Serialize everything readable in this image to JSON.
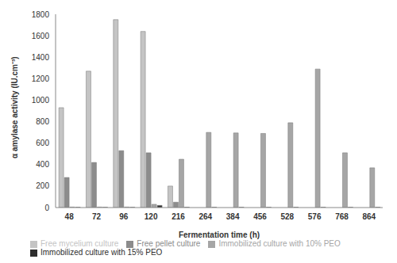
{
  "chart_data": {
    "type": "bar",
    "x_label": "Fermentation time (h)",
    "y_label": "α amylase activity (IU.cm⁻³)",
    "categories": [
      "48",
      "72",
      "96",
      "120",
      "216",
      "264",
      "384",
      "456",
      "528",
      "576",
      "768",
      "864"
    ],
    "series": [
      {
        "name": "Free mycelium culture",
        "color": "#c4c4c4",
        "values": [
          930,
          1270,
          1750,
          1640,
          200,
          null,
          null,
          null,
          null,
          null,
          null,
          null
        ]
      },
      {
        "name": "Free pellet culture",
        "color": "#8c8c8c",
        "values": [
          280,
          420,
          530,
          510,
          50,
          null,
          null,
          null,
          null,
          null,
          null,
          null
        ]
      },
      {
        "name": "Immobilized culture with 10% PEO",
        "color": "#a6a6a6",
        "values": [
          5,
          5,
          5,
          30,
          450,
          700,
          695,
          690,
          790,
          1290,
          510,
          370
        ]
      },
      {
        "name": "Immobilized culture with 15% PEO",
        "color": "#2e2e2e",
        "values": [
          3,
          3,
          3,
          20,
          3,
          3,
          3,
          3,
          3,
          3,
          3,
          3
        ]
      }
    ],
    "ylim": [
      0,
      1800
    ],
    "yticks": [
      0,
      200,
      400,
      600,
      800,
      1000,
      1200,
      1400,
      1600,
      1800
    ],
    "grid": false,
    "legend": "bottom"
  }
}
